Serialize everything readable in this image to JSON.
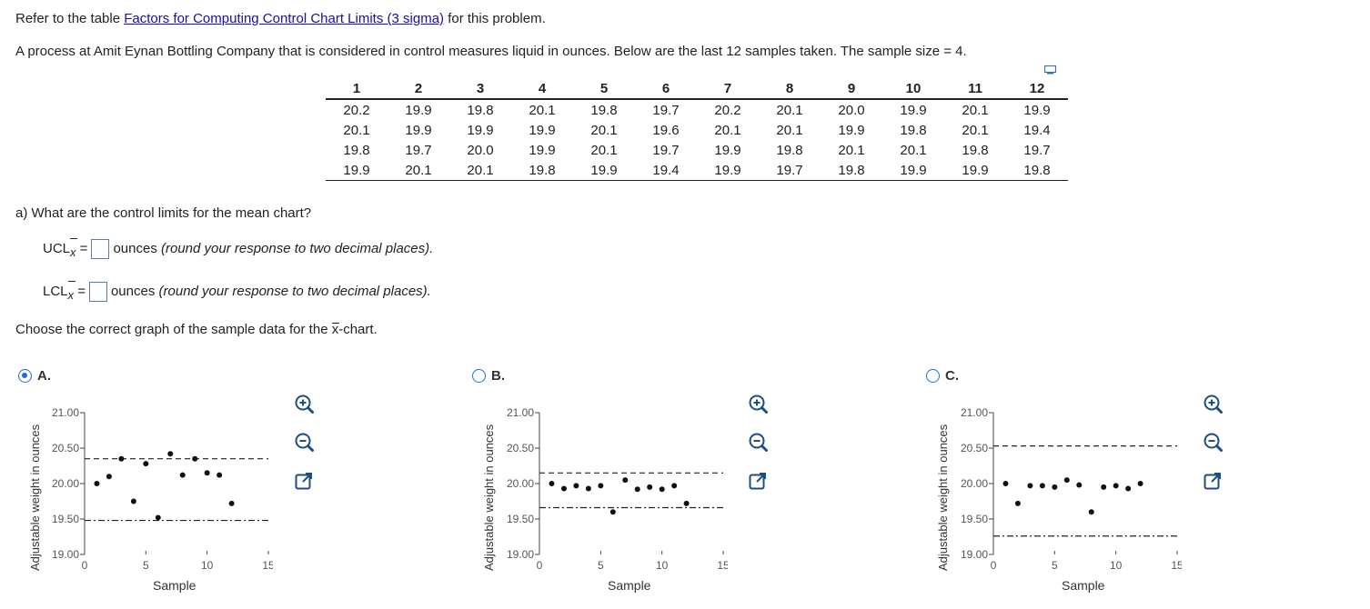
{
  "intro": {
    "prefix": "Refer to the table ",
    "link": "Factors for Computing Control Chart Limits (3 sigma)",
    "suffix": " for this problem."
  },
  "problem": "A process at Amit Eynan Bottling Company that is considered in control measures liquid in ounces. Below are the last 12 samples taken. The sample size = 4.",
  "table": {
    "headers": [
      "1",
      "2",
      "3",
      "4",
      "5",
      "6",
      "7",
      "8",
      "9",
      "10",
      "11",
      "12"
    ],
    "rows": [
      [
        "20.2",
        "19.9",
        "19.8",
        "20.1",
        "19.8",
        "19.7",
        "20.2",
        "20.1",
        "20.0",
        "19.9",
        "20.1",
        "19.9"
      ],
      [
        "20.1",
        "19.9",
        "19.9",
        "19.9",
        "20.1",
        "19.6",
        "20.1",
        "20.1",
        "19.9",
        "19.8",
        "20.1",
        "19.4"
      ],
      [
        "19.8",
        "19.7",
        "20.0",
        "19.9",
        "20.1",
        "19.7",
        "19.9",
        "19.8",
        "20.1",
        "20.1",
        "19.8",
        "19.7"
      ],
      [
        "19.9",
        "20.1",
        "20.1",
        "19.8",
        "19.9",
        "19.4",
        "19.9",
        "19.7",
        "19.8",
        "19.9",
        "19.9",
        "19.8"
      ]
    ]
  },
  "question_a": "a) What are the control limits for the mean chart?",
  "ucl": {
    "label": "UCL",
    "sub": "x",
    "eq": " =",
    "hint_prefix": "ounces ",
    "hint": "(round your response to two decimal places)."
  },
  "lcl": {
    "label": "LCL",
    "sub": "x",
    "eq": " =",
    "hint_prefix": "ounces ",
    "hint": "(round your response to two decimal places)."
  },
  "choose": {
    "prefix": "Choose the correct graph of the sample data for the ",
    "xbar": "x",
    "suffix": "-chart."
  },
  "options": [
    {
      "label": "A.",
      "selected": true
    },
    {
      "label": "B.",
      "selected": false
    },
    {
      "label": "C.",
      "selected": false
    }
  ],
  "chart_axis": {
    "ylabel": "Adjustable weight in ounces",
    "xlabel": "Sample",
    "yticks": [
      "19.00",
      "19.50",
      "20.00",
      "20.50",
      "21.00"
    ],
    "xticks": [
      "0",
      "5",
      "10",
      "15"
    ]
  },
  "chart_data": [
    {
      "type": "scatter",
      "xlabel": "Sample",
      "ylabel": "Adjustable weight in ounces",
      "xlim": [
        0,
        15
      ],
      "ylim": [
        19.0,
        21.0
      ],
      "x": [
        1,
        2,
        3,
        4,
        5,
        6,
        7,
        8,
        9,
        10,
        11,
        12
      ],
      "y": [
        20.0,
        20.1,
        20.35,
        19.75,
        20.28,
        19.52,
        20.42,
        20.12,
        20.35,
        20.15,
        20.12,
        19.72
      ],
      "ucl": 20.35,
      "lcl": 19.48
    },
    {
      "type": "scatter",
      "xlabel": "Sample",
      "ylabel": "Adjustable weight in ounces",
      "xlim": [
        0,
        15
      ],
      "ylim": [
        19.0,
        21.0
      ],
      "x": [
        1,
        2,
        3,
        4,
        5,
        6,
        7,
        8,
        9,
        10,
        11,
        12
      ],
      "y": [
        20.0,
        19.93,
        19.97,
        19.93,
        19.97,
        19.6,
        20.05,
        19.92,
        19.95,
        19.92,
        19.97,
        19.72
      ],
      "ucl": 20.15,
      "lcl": 19.66
    },
    {
      "type": "scatter",
      "xlabel": "Sample",
      "ylabel": "Adjustable weight in ounces",
      "xlim": [
        0,
        15
      ],
      "ylim": [
        19.0,
        21.0
      ],
      "x": [
        1,
        2,
        3,
        4,
        5,
        6,
        7,
        8,
        9,
        10,
        11,
        12
      ],
      "y": [
        20.0,
        19.72,
        19.97,
        19.97,
        19.95,
        20.05,
        19.98,
        19.6,
        19.95,
        19.97,
        19.93,
        20.0
      ],
      "ucl": 20.53,
      "lcl": 19.26
    }
  ],
  "tools": [
    "zoom-in-icon",
    "zoom-out-icon",
    "popout-icon"
  ]
}
